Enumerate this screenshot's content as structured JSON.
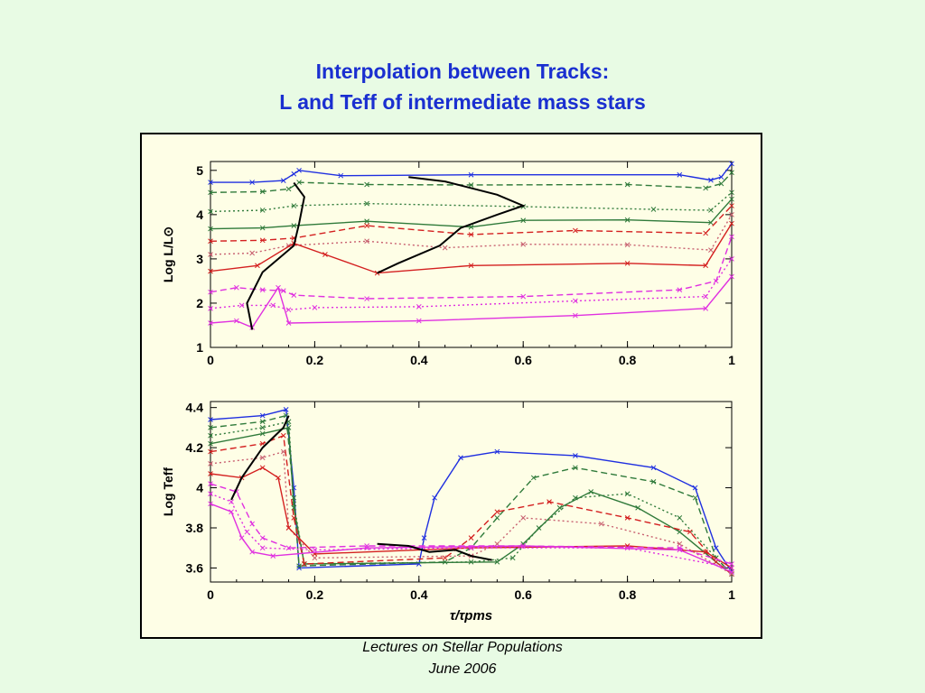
{
  "slide": {
    "title_line1": "Interpolation between Tracks:",
    "title_line2": "L and Teff of intermediate mass stars",
    "footer_line1": "Lectures on Stellar Populations",
    "footer_line2": "June 2006"
  },
  "colors": {
    "blue": "#1f2fe0",
    "green": "#2f7a3a",
    "red": "#d42020",
    "pink": "#c86070",
    "magenta": "#e030e0",
    "interp": "#000000"
  },
  "chart_data": [
    {
      "type": "line",
      "xlabel": "",
      "ylabel": "Log L/L⊙",
      "xlim": [
        0,
        1
      ],
      "ylim": [
        1,
        5.2
      ],
      "xticks": [
        "0",
        "0.2",
        "0.4",
        "0.6",
        "0.8",
        "1"
      ],
      "yticks": [
        "1",
        "2",
        "3",
        "4",
        "5"
      ],
      "series": [
        {
          "color": "blue",
          "style": "solid",
          "points": [
            [
              0,
              4.73
            ],
            [
              0.08,
              4.73
            ],
            [
              0.14,
              4.77
            ],
            [
              0.16,
              4.92
            ],
            [
              0.17,
              5.0
            ],
            [
              0.25,
              4.88
            ],
            [
              0.5,
              4.9
            ],
            [
              0.9,
              4.9
            ],
            [
              0.96,
              4.78
            ],
            [
              0.98,
              4.85
            ],
            [
              1.0,
              5.15
            ]
          ]
        },
        {
          "color": "green",
          "style": "dashed",
          "points": [
            [
              0,
              4.5
            ],
            [
              0.1,
              4.52
            ],
            [
              0.15,
              4.58
            ],
            [
              0.17,
              4.73
            ],
            [
              0.3,
              4.68
            ],
            [
              0.5,
              4.67
            ],
            [
              0.8,
              4.68
            ],
            [
              0.95,
              4.6
            ],
            [
              0.98,
              4.7
            ],
            [
              1.0,
              4.95
            ]
          ]
        },
        {
          "color": "green",
          "style": "dotted",
          "points": [
            [
              0,
              4.07
            ],
            [
              0.1,
              4.1
            ],
            [
              0.16,
              4.2
            ],
            [
              0.3,
              4.25
            ],
            [
              0.6,
              4.18
            ],
            [
              0.85,
              4.12
            ],
            [
              0.96,
              4.1
            ],
            [
              1.0,
              4.5
            ]
          ]
        },
        {
          "color": "green",
          "style": "solid",
          "points": [
            [
              0,
              3.68
            ],
            [
              0.1,
              3.7
            ],
            [
              0.16,
              3.75
            ],
            [
              0.3,
              3.85
            ],
            [
              0.5,
              3.72
            ],
            [
              0.6,
              3.87
            ],
            [
              0.8,
              3.88
            ],
            [
              0.96,
              3.82
            ],
            [
              1.0,
              4.35
            ]
          ]
        },
        {
          "color": "red",
          "style": "dashed",
          "points": [
            [
              0,
              3.4
            ],
            [
              0.1,
              3.42
            ],
            [
              0.16,
              3.47
            ],
            [
              0.3,
              3.75
            ],
            [
              0.5,
              3.55
            ],
            [
              0.7,
              3.64
            ],
            [
              0.95,
              3.58
            ],
            [
              1.0,
              4.2
            ]
          ]
        },
        {
          "color": "pink",
          "style": "dotted",
          "points": [
            [
              0,
              3.1
            ],
            [
              0.08,
              3.13
            ],
            [
              0.15,
              3.3
            ],
            [
              0.3,
              3.4
            ],
            [
              0.45,
              3.25
            ],
            [
              0.6,
              3.33
            ],
            [
              0.8,
              3.32
            ],
            [
              0.96,
              3.2
            ],
            [
              1.0,
              4.0
            ]
          ]
        },
        {
          "color": "red",
          "style": "solid",
          "points": [
            [
              0,
              2.72
            ],
            [
              0.09,
              2.85
            ],
            [
              0.16,
              3.35
            ],
            [
              0.22,
              3.1
            ],
            [
              0.32,
              2.68
            ],
            [
              0.5,
              2.85
            ],
            [
              0.8,
              2.9
            ],
            [
              0.95,
              2.85
            ],
            [
              1.0,
              3.8
            ]
          ]
        },
        {
          "color": "magenta",
          "style": "dashed",
          "points": [
            [
              0,
              2.25
            ],
            [
              0.05,
              2.35
            ],
            [
              0.1,
              2.3
            ],
            [
              0.14,
              2.28
            ],
            [
              0.16,
              2.18
            ],
            [
              0.3,
              2.1
            ],
            [
              0.6,
              2.15
            ],
            [
              0.9,
              2.3
            ],
            [
              0.97,
              2.5
            ],
            [
              1.0,
              3.5
            ]
          ]
        },
        {
          "color": "magenta",
          "style": "dotted",
          "points": [
            [
              0,
              1.88
            ],
            [
              0.06,
              1.95
            ],
            [
              0.12,
              1.95
            ],
            [
              0.15,
              1.85
            ],
            [
              0.2,
              1.9
            ],
            [
              0.4,
              1.92
            ],
            [
              0.7,
              2.05
            ],
            [
              0.95,
              2.15
            ],
            [
              1.0,
              3.0
            ]
          ]
        },
        {
          "color": "magenta",
          "style": "solid",
          "points": [
            [
              0,
              1.55
            ],
            [
              0.05,
              1.6
            ],
            [
              0.08,
              1.45
            ],
            [
              0.13,
              2.35
            ],
            [
              0.15,
              1.55
            ],
            [
              0.4,
              1.6
            ],
            [
              0.7,
              1.72
            ],
            [
              0.95,
              1.88
            ],
            [
              1.0,
              2.6
            ]
          ]
        },
        {
          "color": "interp",
          "style": "solid",
          "points": [
            [
              0.38,
              4.85
            ],
            [
              0.45,
              4.75
            ],
            [
              0.55,
              4.45
            ],
            [
              0.6,
              4.2
            ],
            [
              0.55,
              4.0
            ],
            [
              0.48,
              3.7
            ],
            [
              0.44,
              3.3
            ],
            [
              0.36,
              2.9
            ],
            [
              0.32,
              2.68
            ]
          ]
        },
        {
          "color": "interp",
          "style": "solid",
          "points": [
            [
              0.16,
              4.72
            ],
            [
              0.18,
              4.4
            ],
            [
              0.17,
              3.8
            ],
            [
              0.16,
              3.3
            ],
            [
              0.1,
              2.7
            ],
            [
              0.07,
              2.0
            ],
            [
              0.08,
              1.4
            ]
          ]
        }
      ]
    },
    {
      "type": "line",
      "xlabel": "τ/τpms",
      "ylabel": "Log Teff",
      "xlim": [
        0,
        1
      ],
      "ylim": [
        3.53,
        4.43
      ],
      "xticks": [
        "0",
        "0.2",
        "0.4",
        "0.6",
        "0.8",
        "1"
      ],
      "yticks": [
        "3.6",
        "3.8",
        "4",
        "4.2",
        "4.4"
      ],
      "series": [
        {
          "color": "blue",
          "style": "solid",
          "points": [
            [
              0,
              4.34
            ],
            [
              0.1,
              4.36
            ],
            [
              0.145,
              4.39
            ],
            [
              0.16,
              4.0
            ],
            [
              0.17,
              3.6
            ],
            [
              0.4,
              3.62
            ],
            [
              0.41,
              3.75
            ],
            [
              0.43,
              3.95
            ],
            [
              0.48,
              4.15
            ],
            [
              0.55,
              4.18
            ],
            [
              0.7,
              4.16
            ],
            [
              0.85,
              4.1
            ],
            [
              0.93,
              4.0
            ],
            [
              0.97,
              3.7
            ],
            [
              1.0,
              3.58
            ]
          ]
        },
        {
          "color": "green",
          "style": "dashed",
          "points": [
            [
              0,
              4.3
            ],
            [
              0.1,
              4.33
            ],
            [
              0.145,
              4.36
            ],
            [
              0.16,
              3.95
            ],
            [
              0.17,
              3.61
            ],
            [
              0.45,
              3.63
            ],
            [
              0.5,
              3.7
            ],
            [
              0.55,
              3.85
            ],
            [
              0.62,
              4.05
            ],
            [
              0.7,
              4.1
            ],
            [
              0.85,
              4.03
            ],
            [
              0.93,
              3.95
            ],
            [
              0.97,
              3.65
            ],
            [
              1.0,
              3.57
            ]
          ]
        },
        {
          "color": "green",
          "style": "dotted",
          "points": [
            [
              0,
              4.26
            ],
            [
              0.1,
              4.3
            ],
            [
              0.15,
              4.33
            ],
            [
              0.16,
              3.92
            ],
            [
              0.18,
              3.62
            ],
            [
              0.5,
              3.63
            ],
            [
              0.58,
              3.65
            ],
            [
              0.63,
              3.8
            ],
            [
              0.7,
              3.95
            ],
            [
              0.8,
              3.97
            ],
            [
              0.9,
              3.85
            ],
            [
              0.97,
              3.65
            ],
            [
              1.0,
              3.57
            ]
          ]
        },
        {
          "color": "green",
          "style": "solid",
          "points": [
            [
              0,
              4.22
            ],
            [
              0.1,
              4.27
            ],
            [
              0.15,
              4.3
            ],
            [
              0.16,
              3.9
            ],
            [
              0.18,
              3.62
            ],
            [
              0.55,
              3.63
            ],
            [
              0.6,
              3.72
            ],
            [
              0.67,
              3.9
            ],
            [
              0.73,
              3.98
            ],
            [
              0.82,
              3.9
            ],
            [
              0.9,
              3.78
            ],
            [
              0.97,
              3.63
            ],
            [
              1.0,
              3.57
            ]
          ]
        },
        {
          "color": "red",
          "style": "dashed",
          "points": [
            [
              0,
              4.18
            ],
            [
              0.1,
              4.22
            ],
            [
              0.14,
              4.26
            ],
            [
              0.16,
              3.85
            ],
            [
              0.18,
              3.62
            ],
            [
              0.45,
              3.65
            ],
            [
              0.5,
              3.75
            ],
            [
              0.55,
              3.88
            ],
            [
              0.65,
              3.93
            ],
            [
              0.8,
              3.85
            ],
            [
              0.92,
              3.78
            ],
            [
              0.97,
              3.63
            ],
            [
              1.0,
              3.57
            ]
          ]
        },
        {
          "color": "pink",
          "style": "dotted",
          "points": [
            [
              0,
              4.12
            ],
            [
              0.1,
              4.15
            ],
            [
              0.14,
              4.18
            ],
            [
              0.15,
              3.8
            ],
            [
              0.2,
              3.65
            ],
            [
              0.5,
              3.66
            ],
            [
              0.55,
              3.72
            ],
            [
              0.6,
              3.85
            ],
            [
              0.75,
              3.82
            ],
            [
              0.9,
              3.72
            ],
            [
              1.0,
              3.57
            ]
          ]
        },
        {
          "color": "red",
          "style": "solid",
          "points": [
            [
              0,
              4.07
            ],
            [
              0.06,
              4.05
            ],
            [
              0.1,
              4.1
            ],
            [
              0.13,
              4.05
            ],
            [
              0.15,
              3.8
            ],
            [
              0.2,
              3.67
            ],
            [
              0.5,
              3.7
            ],
            [
              0.8,
              3.71
            ],
            [
              0.95,
              3.68
            ],
            [
              1.0,
              3.6
            ]
          ]
        },
        {
          "color": "magenta",
          "style": "dashed",
          "points": [
            [
              0,
              4.02
            ],
            [
              0.05,
              3.98
            ],
            [
              0.08,
              3.82
            ],
            [
              0.1,
              3.75
            ],
            [
              0.15,
              3.7
            ],
            [
              0.3,
              3.71
            ],
            [
              0.6,
              3.71
            ],
            [
              0.9,
              3.7
            ],
            [
              1.0,
              3.62
            ]
          ]
        },
        {
          "color": "magenta",
          "style": "dotted",
          "points": [
            [
              0,
              3.97
            ],
            [
              0.04,
              3.93
            ],
            [
              0.07,
              3.78
            ],
            [
              0.1,
              3.7
            ],
            [
              0.2,
              3.69
            ],
            [
              0.5,
              3.7
            ],
            [
              0.8,
              3.7
            ],
            [
              1.0,
              3.6
            ]
          ]
        },
        {
          "color": "magenta",
          "style": "solid",
          "points": [
            [
              0,
              3.92
            ],
            [
              0.04,
              3.88
            ],
            [
              0.06,
              3.75
            ],
            [
              0.08,
              3.68
            ],
            [
              0.12,
              3.66
            ],
            [
              0.3,
              3.7
            ],
            [
              0.6,
              3.71
            ],
            [
              0.9,
              3.69
            ],
            [
              1.0,
              3.58
            ]
          ]
        },
        {
          "color": "interp",
          "style": "solid",
          "points": [
            [
              0.04,
              3.94
            ],
            [
              0.06,
              4.05
            ],
            [
              0.1,
              4.2
            ],
            [
              0.14,
              4.3
            ],
            [
              0.15,
              4.36
            ]
          ]
        },
        {
          "color": "interp",
          "style": "solid",
          "points": [
            [
              0.32,
              3.72
            ],
            [
              0.38,
              3.71
            ],
            [
              0.42,
              3.68
            ],
            [
              0.47,
              3.69
            ],
            [
              0.5,
              3.66
            ],
            [
              0.54,
              3.64
            ]
          ]
        }
      ]
    }
  ]
}
